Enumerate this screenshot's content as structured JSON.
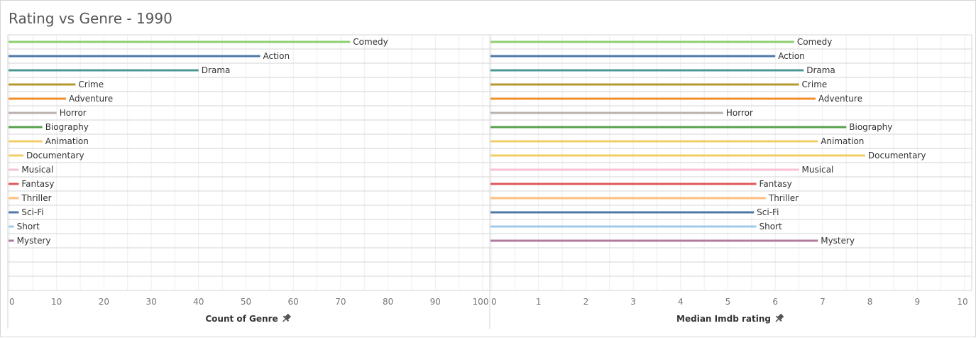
{
  "title": "Rating vs Genre - 1990",
  "colors": {
    "gridline": "#eeeeee",
    "row_divider": "#d6d6d6",
    "pin_icon": "#555555"
  },
  "chart_data": [
    {
      "type": "bar",
      "orientation": "horizontal",
      "xlabel": "Count of Genre",
      "xlabel_icon": "pin-icon",
      "xlim": [
        0,
        100
      ],
      "xticks": [
        0,
        10,
        20,
        30,
        40,
        50,
        60,
        70,
        80,
        90,
        100
      ],
      "grid": true,
      "categories": [
        "Comedy",
        "Action",
        "Drama",
        "Crime",
        "Adventure",
        "Horror",
        "Biography",
        "Animation",
        "Documentary",
        "Musical",
        "Fantasy",
        "Thriller",
        "Sci-Fi",
        "Short",
        "Mystery"
      ],
      "values": [
        72,
        53,
        40,
        14,
        12,
        10,
        7,
        7,
        3,
        2,
        2,
        2,
        2,
        1,
        1
      ],
      "bar_colors": [
        "#8ccf6f",
        "#4e79a7",
        "#499894",
        "#b6992d",
        "#f28e2b",
        "#bab0ac",
        "#59a14f",
        "#f1ce63",
        "#f1ce63",
        "#fabfd2",
        "#e15759",
        "#ffbe7d",
        "#4e79a7",
        "#a0cbe8",
        "#b07aa1"
      ]
    },
    {
      "type": "bar",
      "orientation": "horizontal",
      "xlabel": "Median  Imdb rating",
      "xlabel_icon": "pin-icon",
      "xlim": [
        0,
        10
      ],
      "xticks": [
        0,
        1,
        2,
        3,
        4,
        5,
        6,
        7,
        8,
        9,
        10
      ],
      "grid": true,
      "categories": [
        "Comedy",
        "Action",
        "Drama",
        "Crime",
        "Adventure",
        "Horror",
        "Biography",
        "Animation",
        "Documentary",
        "Musical",
        "Fantasy",
        "Thriller",
        "Sci-Fi",
        "Short",
        "Mystery"
      ],
      "values": [
        6.4,
        6.0,
        6.6,
        6.5,
        6.85,
        4.9,
        7.5,
        6.9,
        7.9,
        6.5,
        5.6,
        5.8,
        5.55,
        5.6,
        6.9
      ],
      "bar_colors": [
        "#8ccf6f",
        "#4e79a7",
        "#499894",
        "#b6992d",
        "#f28e2b",
        "#bab0ac",
        "#59a14f",
        "#f1ce63",
        "#f1ce63",
        "#fabfd2",
        "#e15759",
        "#ffbe7d",
        "#4e79a7",
        "#a0cbe8",
        "#b07aa1"
      ]
    }
  ]
}
